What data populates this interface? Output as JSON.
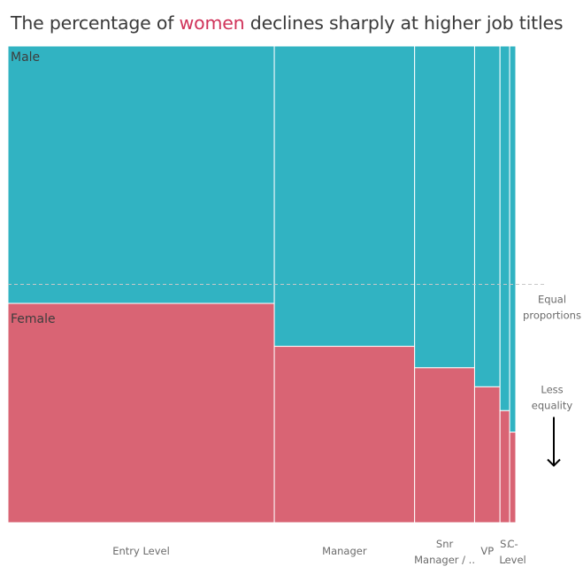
{
  "title": {
    "before": "The percentage of ",
    "highlight": "women",
    "after": " declines sharply at higher job titles"
  },
  "colors": {
    "male": "#31b3c2",
    "female": "#d96474",
    "highlight": "#d0335a"
  },
  "chart_data": {
    "type": "marimekko",
    "title": "The percentage of women declines sharply at higher job titles",
    "categories": [
      "Entry Level",
      "Manager",
      "Snr Manager / ..",
      "VP",
      "S..",
      "C-Level"
    ],
    "category_labels": [
      [
        "Entry Level"
      ],
      [
        "Manager"
      ],
      [
        "Snr",
        "Manager / .."
      ],
      [
        "VP"
      ],
      [
        "S.",
        "."
      ],
      [
        "C-",
        "Level"
      ]
    ],
    "column_share_pct": [
      52.4,
      27.6,
      11.8,
      5.0,
      1.9,
      1.2
    ],
    "series": [
      {
        "name": "Male",
        "values": [
          54.0,
          63.0,
          67.5,
          71.5,
          76.5,
          81.0
        ]
      },
      {
        "name": "Female",
        "values": [
          46.0,
          37.0,
          32.5,
          28.5,
          23.5,
          19.0
        ]
      }
    ],
    "ylim": [
      0,
      100
    ],
    "reference_line": {
      "value": 50,
      "label": [
        "Equal",
        "proportions"
      ]
    },
    "annotation": {
      "label": [
        "Less",
        "equality"
      ],
      "arrow": "down"
    }
  }
}
